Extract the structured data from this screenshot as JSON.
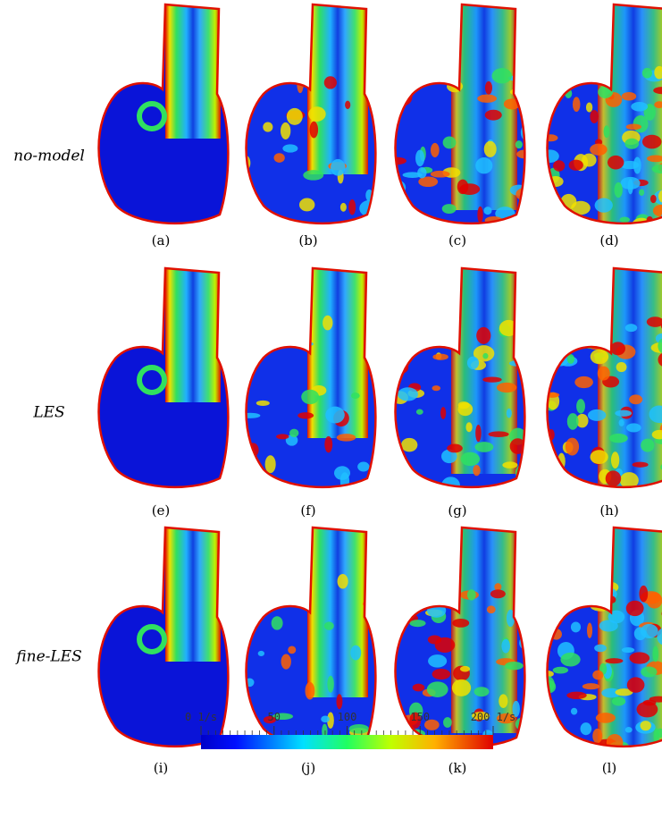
{
  "rows": [
    {
      "label": "no-model",
      "panels": [
        "(a)",
        "(b)",
        "(c)",
        "(d)"
      ]
    },
    {
      "label": "LES",
      "panels": [
        "(e)",
        "(f)",
        "(g)",
        "(h)"
      ]
    },
    {
      "label": "fine-LES",
      "panels": [
        "(i)",
        "(j)",
        "(k)",
        "(l)"
      ]
    }
  ],
  "colorbar": {
    "lim": [
      0,
      200
    ],
    "ticks": [
      {
        "value": 0,
        "label": "0 1/s"
      },
      50,
      100,
      150,
      {
        "value": 200,
        "label": "200 1/s"
      }
    ]
  }
}
